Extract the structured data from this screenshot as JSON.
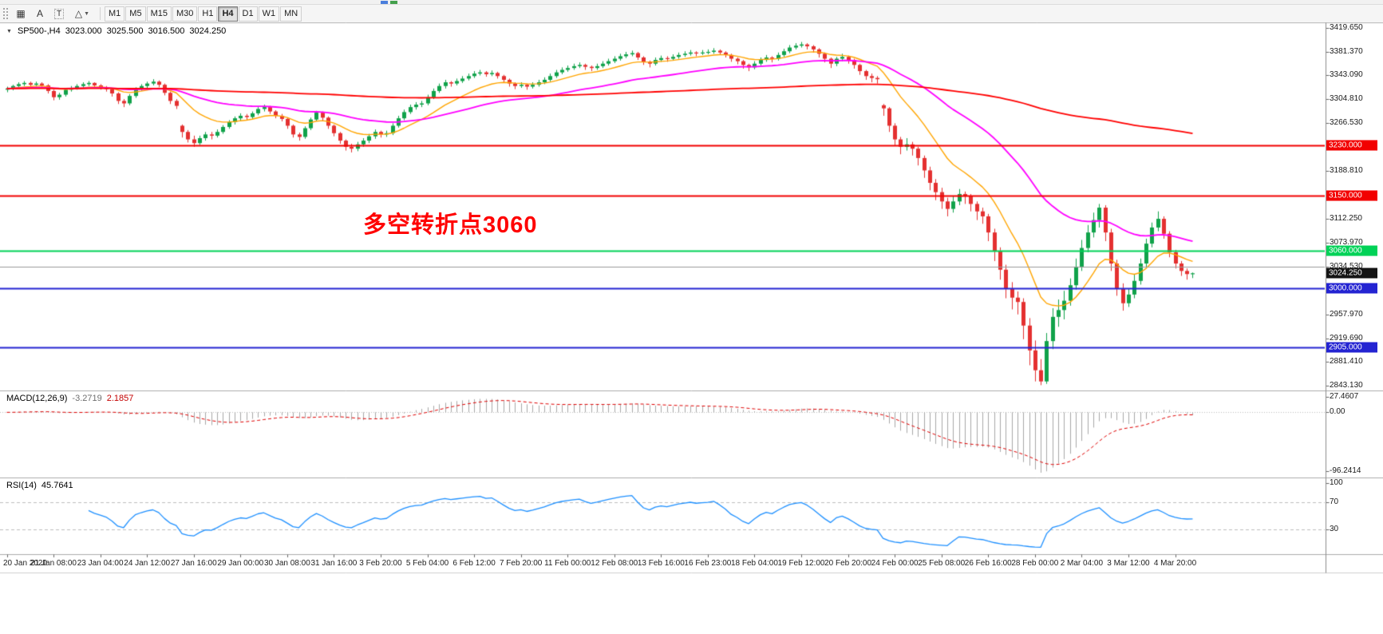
{
  "toolbar": {
    "tools": [
      {
        "name": "grid-tool",
        "glyph": "▦"
      },
      {
        "name": "text-tool",
        "glyph": "A"
      },
      {
        "name": "text-label-tool",
        "glyph": "T"
      },
      {
        "name": "shapes-tool",
        "glyph": "△"
      },
      {
        "name": "shapes-dropdown",
        "glyph": "▼"
      }
    ],
    "timeframes": [
      {
        "label": "M1",
        "active": false
      },
      {
        "label": "M5",
        "active": false
      },
      {
        "label": "M15",
        "active": false
      },
      {
        "label": "M30",
        "active": false
      },
      {
        "label": "H1",
        "active": false
      },
      {
        "label": "H4",
        "active": true
      },
      {
        "label": "D1",
        "active": false
      },
      {
        "label": "W1",
        "active": false
      },
      {
        "label": "MN",
        "active": false
      }
    ]
  },
  "chart": {
    "dropdown_glyph": "▼",
    "symbol_timeframe": "SP500-,H4",
    "open": "3023.000",
    "high": "3025.500",
    "low": "3016.500",
    "close": "3024.250",
    "annotation": {
      "text": "多空转折点3060",
      "color": "#FF0000"
    }
  },
  "indicators": {
    "macd": {
      "title": "MACD(12,26,9)",
      "main_value": "-3.2719",
      "signal_value": "2.1857",
      "axis_labels": [
        "27.4607",
        "0.00",
        "-96.2414"
      ],
      "histogram_color": "#A8A8A8",
      "signal_color": "#E00000"
    },
    "rsi": {
      "title": "RSI(14)",
      "value": "45.7641",
      "period": 14,
      "axis_labels": [
        "100",
        "70",
        "30"
      ],
      "levels": [
        70,
        30
      ],
      "line_color": "#1E90FF"
    }
  },
  "price_axis": {
    "labels": [
      "3419.650",
      "3381.370",
      "3343.090",
      "3304.810",
      "3266.530",
      "3188.810",
      "3112.250",
      "3073.970",
      "3034.530",
      "2957.970",
      "2919.690",
      "2881.410",
      "2843.130"
    ],
    "tags": [
      {
        "text": "3230.000",
        "bg": "#F20000"
      },
      {
        "text": "3150.000",
        "bg": "#F20000"
      },
      {
        "text": "3060.000",
        "bg": "#00D257"
      },
      {
        "text": "3024.250",
        "bg": "#141414"
      },
      {
        "text": "3000.000",
        "bg": "#2424D2"
      },
      {
        "text": "2905.000",
        "bg": "#2424D2"
      }
    ]
  },
  "time_axis": {
    "labels": [
      "20 Jan 2020",
      "21 Jan 08:00",
      "23 Jan 04:00",
      "24 Jan 12:00",
      "27 Jan 16:00",
      "29 Jan 00:00",
      "30 Jan 08:00",
      "31 Jan 16:00",
      "3 Feb 20:00",
      "5 Feb 04:00",
      "6 Feb 12:00",
      "7 Feb 20:00",
      "11 Feb 00:00",
      "12 Feb 08:00",
      "13 Feb 16:00",
      "16 Feb 23:00",
      "18 Feb 04:00",
      "19 Feb 12:00",
      "20 Feb 20:00",
      "24 Feb 00:00",
      "25 Feb 08:00",
      "26 Feb 16:00",
      "28 Feb 00:00",
      "2 Mar 04:00",
      "3 Mar 12:00",
      "4 Mar 20:00"
    ]
  },
  "chart_data": {
    "type": "candlestick",
    "symbol": "SP500-",
    "timeframe": "H4",
    "ylim": [
      2838,
      3426
    ],
    "up_color": "#10A24A",
    "down_color": "#E43030",
    "ma": [
      {
        "period": 13,
        "color": "#FFA500",
        "width": 1.4
      },
      {
        "period": 45,
        "color": "#FF00FF",
        "width": 1.8
      },
      {
        "period": 300,
        "color": "#FF0000",
        "width": 1.8
      }
    ],
    "hlines": [
      {
        "price": 3230,
        "color": "#F20000",
        "width": 2
      },
      {
        "price": 3150,
        "color": "#F20000",
        "width": 2
      },
      {
        "price": 3060,
        "color": "#00D257",
        "width": 2
      },
      {
        "price": 3034.5,
        "color": "#9A9A9A",
        "width": 1
      },
      {
        "price": 3000,
        "color": "#2424D2",
        "width": 2
      },
      {
        "price": 2905,
        "color": "#2424D2",
        "width": 2
      }
    ],
    "candles": [
      [
        3320,
        3325,
        3316,
        3322
      ],
      [
        3322,
        3328,
        3319,
        3326
      ],
      [
        3326,
        3332,
        3323,
        3329
      ],
      [
        3329,
        3334,
        3326,
        3331
      ],
      [
        3331,
        3333,
        3324,
        3328
      ],
      [
        3328,
        3333,
        3325,
        3330
      ],
      [
        3330,
        3332,
        3322,
        3327
      ],
      [
        3327,
        3329,
        3314,
        3318
      ],
      [
        3318,
        3320,
        3303,
        3308
      ],
      [
        3308,
        3315,
        3304,
        3312
      ],
      [
        3312,
        3323,
        3309,
        3320
      ],
      [
        3320,
        3326,
        3317,
        3323
      ],
      [
        3323,
        3329,
        3320,
        3326
      ],
      [
        3326,
        3332,
        3323,
        3329
      ],
      [
        3329,
        3334,
        3326,
        3331
      ],
      [
        3331,
        3332,
        3323,
        3327
      ],
      [
        3327,
        3329,
        3320,
        3324
      ],
      [
        3324,
        3326,
        3317,
        3321
      ],
      [
        3321,
        3322,
        3309,
        3314
      ],
      [
        3314,
        3316,
        3297,
        3302
      ],
      [
        3302,
        3305,
        3292,
        3298
      ],
      [
        3298,
        3313,
        3295,
        3310
      ],
      [
        3310,
        3324,
        3307,
        3321
      ],
      [
        3321,
        3329,
        3318,
        3326
      ],
      [
        3326,
        3333,
        3323,
        3330
      ],
      [
        3330,
        3337,
        3327,
        3333
      ],
      [
        3333,
        3335,
        3324,
        3328
      ],
      [
        3328,
        3330,
        3311,
        3315
      ],
      [
        3315,
        3317,
        3297,
        3302
      ],
      [
        3302,
        3305,
        3289,
        3294
      ],
      [
        3262,
        3264,
        3243,
        3252
      ],
      [
        3252,
        3255,
        3235,
        3240
      ],
      [
        3240,
        3246,
        3228,
        3234
      ],
      [
        3234,
        3246,
        3231,
        3242
      ],
      [
        3242,
        3252,
        3238,
        3248
      ],
      [
        3248,
        3252,
        3240,
        3246
      ],
      [
        3246,
        3256,
        3243,
        3252
      ],
      [
        3252,
        3263,
        3249,
        3260
      ],
      [
        3260,
        3271,
        3257,
        3268
      ],
      [
        3268,
        3277,
        3264,
        3274
      ],
      [
        3274,
        3282,
        3270,
        3278
      ],
      [
        3278,
        3281,
        3271,
        3276
      ],
      [
        3276,
        3285,
        3273,
        3282
      ],
      [
        3282,
        3292,
        3279,
        3289
      ],
      [
        3289,
        3296,
        3285,
        3292
      ],
      [
        3292,
        3294,
        3281,
        3285
      ],
      [
        3285,
        3287,
        3274,
        3278
      ],
      [
        3278,
        3281,
        3269,
        3273
      ],
      [
        3273,
        3275,
        3257,
        3262
      ],
      [
        3262,
        3264,
        3243,
        3248
      ],
      [
        3248,
        3251,
        3238,
        3244
      ],
      [
        3244,
        3261,
        3241,
        3258
      ],
      [
        3258,
        3275,
        3255,
        3272
      ],
      [
        3272,
        3286,
        3269,
        3283
      ],
      [
        3283,
        3285,
        3270,
        3275
      ],
      [
        3275,
        3277,
        3257,
        3262
      ],
      [
        3262,
        3264,
        3245,
        3250
      ],
      [
        3250,
        3252,
        3233,
        3238
      ],
      [
        3238,
        3240,
        3222,
        3228
      ],
      [
        3228,
        3233,
        3219,
        3225
      ],
      [
        3225,
        3236,
        3221,
        3232
      ],
      [
        3232,
        3242,
        3228,
        3238
      ],
      [
        3238,
        3249,
        3234,
        3245
      ],
      [
        3245,
        3256,
        3241,
        3252
      ],
      [
        3252,
        3254,
        3243,
        3248
      ],
      [
        3248,
        3254,
        3244,
        3250
      ],
      [
        3250,
        3266,
        3247,
        3262
      ],
      [
        3262,
        3278,
        3259,
        3274
      ],
      [
        3274,
        3288,
        3271,
        3284
      ],
      [
        3284,
        3296,
        3281,
        3292
      ],
      [
        3292,
        3300,
        3288,
        3296
      ],
      [
        3296,
        3302,
        3292,
        3298
      ],
      [
        3298,
        3312,
        3295,
        3308
      ],
      [
        3308,
        3322,
        3305,
        3318
      ],
      [
        3318,
        3330,
        3315,
        3326
      ],
      [
        3326,
        3336,
        3322,
        3332
      ],
      [
        3332,
        3334,
        3325,
        3330
      ],
      [
        3330,
        3338,
        3327,
        3334
      ],
      [
        3334,
        3342,
        3331,
        3338
      ],
      [
        3338,
        3346,
        3335,
        3342
      ],
      [
        3342,
        3350,
        3339,
        3346
      ],
      [
        3346,
        3352,
        3343,
        3348
      ],
      [
        3348,
        3350,
        3341,
        3345
      ],
      [
        3345,
        3351,
        3342,
        3347
      ],
      [
        3347,
        3349,
        3338,
        3342
      ],
      [
        3342,
        3344,
        3331,
        3336
      ],
      [
        3336,
        3338,
        3325,
        3330
      ],
      [
        3330,
        3332,
        3321,
        3326
      ],
      [
        3326,
        3332,
        3323,
        3328
      ],
      [
        3328,
        3330,
        3320,
        3325
      ],
      [
        3325,
        3332,
        3322,
        3328
      ],
      [
        3328,
        3336,
        3325,
        3332
      ],
      [
        3332,
        3340,
        3329,
        3336
      ],
      [
        3336,
        3346,
        3333,
        3342
      ],
      [
        3342,
        3352,
        3339,
        3348
      ],
      [
        3348,
        3356,
        3345,
        3352
      ],
      [
        3352,
        3359,
        3349,
        3355
      ],
      [
        3355,
        3362,
        3352,
        3358
      ],
      [
        3358,
        3364,
        3355,
        3360
      ],
      [
        3360,
        3362,
        3352,
        3357
      ],
      [
        3357,
        3359,
        3350,
        3355
      ],
      [
        3355,
        3362,
        3352,
        3358
      ],
      [
        3358,
        3366,
        3355,
        3362
      ],
      [
        3362,
        3370,
        3359,
        3366
      ],
      [
        3366,
        3374,
        3363,
        3370
      ],
      [
        3370,
        3378,
        3367,
        3374
      ],
      [
        3374,
        3381,
        3371,
        3377
      ],
      [
        3377,
        3383,
        3374,
        3379
      ],
      [
        3379,
        3381,
        3368,
        3372
      ],
      [
        3372,
        3374,
        3360,
        3365
      ],
      [
        3365,
        3367,
        3356,
        3362
      ],
      [
        3362,
        3372,
        3359,
        3368
      ],
      [
        3368,
        3375,
        3365,
        3371
      ],
      [
        3371,
        3374,
        3365,
        3370
      ],
      [
        3370,
        3377,
        3367,
        3373
      ],
      [
        3373,
        3380,
        3370,
        3376
      ],
      [
        3376,
        3382,
        3373,
        3378
      ],
      [
        3378,
        3384,
        3375,
        3380
      ],
      [
        3380,
        3382,
        3374,
        3379
      ],
      [
        3379,
        3384,
        3376,
        3380
      ],
      [
        3380,
        3385,
        3377,
        3381
      ],
      [
        3381,
        3387,
        3378,
        3383
      ],
      [
        3383,
        3385,
        3376,
        3380
      ],
      [
        3380,
        3382,
        3372,
        3376
      ],
      [
        3376,
        3378,
        3365,
        3370
      ],
      [
        3370,
        3372,
        3361,
        3366
      ],
      [
        3366,
        3368,
        3354,
        3360
      ],
      [
        3360,
        3362,
        3350,
        3356
      ],
      [
        3356,
        3366,
        3353,
        3362
      ],
      [
        3362,
        3372,
        3359,
        3368
      ],
      [
        3368,
        3376,
        3365,
        3372
      ],
      [
        3372,
        3374,
        3364,
        3370
      ],
      [
        3370,
        3380,
        3367,
        3376
      ],
      [
        3376,
        3386,
        3373,
        3382
      ],
      [
        3382,
        3392,
        3379,
        3388
      ],
      [
        3388,
        3395,
        3385,
        3391
      ],
      [
        3391,
        3397,
        3388,
        3393
      ],
      [
        3393,
        3395,
        3385,
        3390
      ],
      [
        3390,
        3392,
        3380,
        3385
      ],
      [
        3385,
        3387,
        3372,
        3378
      ],
      [
        3378,
        3380,
        3364,
        3370
      ],
      [
        3370,
        3372,
        3355,
        3362
      ],
      [
        3362,
        3373,
        3358,
        3370
      ],
      [
        3370,
        3378,
        3366,
        3373
      ],
      [
        3373,
        3375,
        3362,
        3368
      ],
      [
        3368,
        3370,
        3354,
        3360
      ],
      [
        3360,
        3362,
        3344,
        3350
      ],
      [
        3350,
        3352,
        3336,
        3342
      ],
      [
        3342,
        3346,
        3332,
        3339
      ],
      [
        3339,
        3342,
        3330,
        3337
      ],
      [
        3295,
        3297,
        3278,
        3290
      ],
      [
        3290,
        3292,
        3252,
        3262
      ],
      [
        3262,
        3266,
        3230,
        3240
      ],
      [
        3240,
        3244,
        3216,
        3228
      ],
      [
        3228,
        3242,
        3222,
        3232
      ],
      [
        3232,
        3236,
        3214,
        3225
      ],
      [
        3225,
        3228,
        3198,
        3210
      ],
      [
        3210,
        3214,
        3178,
        3190
      ],
      [
        3190,
        3196,
        3158,
        3170
      ],
      [
        3170,
        3176,
        3142,
        3155
      ],
      [
        3155,
        3162,
        3128,
        3140
      ],
      [
        3140,
        3146,
        3116,
        3128
      ],
      [
        3128,
        3148,
        3122,
        3140
      ],
      [
        3140,
        3160,
        3134,
        3152
      ],
      [
        3152,
        3156,
        3136,
        3148
      ],
      [
        3148,
        3152,
        3124,
        3136
      ],
      [
        3136,
        3140,
        3110,
        3124
      ],
      [
        3124,
        3130,
        3104,
        3116
      ],
      [
        3116,
        3120,
        3076,
        3090
      ],
      [
        3090,
        3096,
        3044,
        3060
      ],
      [
        3060,
        3066,
        3014,
        3030
      ],
      [
        3030,
        3038,
        2984,
        3000
      ],
      [
        3000,
        3010,
        2966,
        2985
      ],
      [
        2985,
        2995,
        2958,
        2978
      ],
      [
        2978,
        2984,
        2918,
        2940
      ],
      [
        2940,
        2952,
        2876,
        2900
      ],
      [
        2900,
        2916,
        2850,
        2868
      ],
      [
        2868,
        2886,
        2844,
        2850
      ],
      [
        2850,
        2928,
        2846,
        2915
      ],
      [
        2915,
        2968,
        2902,
        2954
      ],
      [
        2954,
        2982,
        2938,
        2965
      ],
      [
        2965,
        2996,
        2950,
        2980
      ],
      [
        2980,
        3016,
        2972,
        3005
      ],
      [
        3005,
        3048,
        2998,
        3035
      ],
      [
        3035,
        3078,
        3028,
        3065
      ],
      [
        3065,
        3102,
        3058,
        3090
      ],
      [
        3090,
        3122,
        3082,
        3110
      ],
      [
        3110,
        3136,
        3098,
        3130
      ],
      [
        3130,
        3134,
        3076,
        3090
      ],
      [
        3090,
        3096,
        3028,
        3040
      ],
      [
        3040,
        3046,
        2988,
        3000
      ],
      [
        3000,
        3008,
        2964,
        2976
      ],
      [
        2976,
        3000,
        2970,
        2990
      ],
      [
        2990,
        3022,
        2984,
        3012
      ],
      [
        3012,
        3048,
        3006,
        3040
      ],
      [
        3040,
        3080,
        3034,
        3072
      ],
      [
        3072,
        3106,
        3066,
        3098
      ],
      [
        3098,
        3124,
        3092,
        3112
      ],
      [
        3112,
        3116,
        3080,
        3088
      ],
      [
        3088,
        3092,
        3050,
        3058
      ],
      [
        3058,
        3062,
        3032,
        3040
      ],
      [
        3040,
        3044,
        3020,
        3028
      ],
      [
        3028,
        3032,
        3014,
        3023
      ],
      [
        3023,
        3025.5,
        3016.5,
        3024.25
      ]
    ]
  }
}
